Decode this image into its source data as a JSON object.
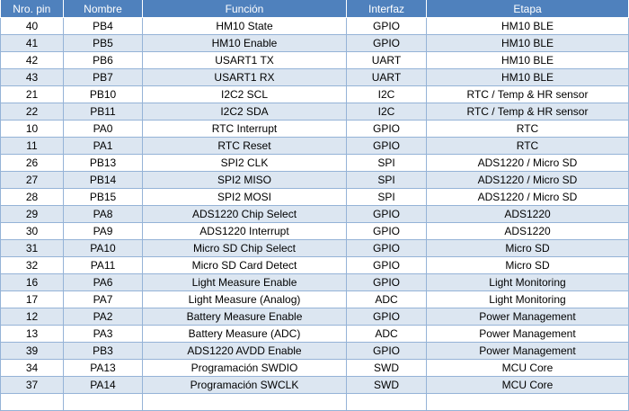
{
  "table": {
    "headers": [
      "Nro. pin",
      "Nombre",
      "Función",
      "Interfaz",
      "Etapa"
    ],
    "rows": [
      [
        "40",
        "PB4",
        "HM10 State",
        "GPIO",
        "HM10 BLE"
      ],
      [
        "41",
        "PB5",
        "HM10 Enable",
        "GPIO",
        "HM10 BLE"
      ],
      [
        "42",
        "PB6",
        "USART1 TX",
        "UART",
        "HM10 BLE"
      ],
      [
        "43",
        "PB7",
        "USART1 RX",
        "UART",
        "HM10 BLE"
      ],
      [
        "21",
        "PB10",
        "I2C2 SCL",
        "I2C",
        "RTC / Temp & HR sensor"
      ],
      [
        "22",
        "PB11",
        "I2C2 SDA",
        "I2C",
        "RTC / Temp & HR sensor"
      ],
      [
        "10",
        "PA0",
        "RTC Interrupt",
        "GPIO",
        "RTC"
      ],
      [
        "11",
        "PA1",
        "RTC Reset",
        "GPIO",
        "RTC"
      ],
      [
        "26",
        "PB13",
        "SPI2 CLK",
        "SPI",
        "ADS1220 / Micro SD"
      ],
      [
        "27",
        "PB14",
        "SPI2 MISO",
        "SPI",
        "ADS1220 / Micro SD"
      ],
      [
        "28",
        "PB15",
        "SPI2 MOSI",
        "SPI",
        "ADS1220 / Micro SD"
      ],
      [
        "29",
        "PA8",
        "ADS1220 Chip Select",
        "GPIO",
        "ADS1220"
      ],
      [
        "30",
        "PA9",
        "ADS1220 Interrupt",
        "GPIO",
        "ADS1220"
      ],
      [
        "31",
        "PA10",
        "Micro SD Chip Select",
        "GPIO",
        "Micro SD"
      ],
      [
        "32",
        "PA11",
        "Micro SD Card Detect",
        "GPIO",
        "Micro SD"
      ],
      [
        "16",
        "PA6",
        "Light Measure Enable",
        "GPIO",
        "Light Monitoring"
      ],
      [
        "17",
        "PA7",
        "Light Measure (Analog)",
        "ADC",
        "Light Monitoring"
      ],
      [
        "12",
        "PA2",
        "Battery Measure Enable",
        "GPIO",
        "Power Management"
      ],
      [
        "13",
        "PA3",
        "Battery Measure (ADC)",
        "ADC",
        "Power Management"
      ],
      [
        "39",
        "PB3",
        "ADS1220 AVDD Enable",
        "GPIO",
        "Power Management"
      ],
      [
        "34",
        "PA13",
        "Programación SWDIO",
        "SWD",
        "MCU Core"
      ],
      [
        "37",
        "PA14",
        "Programación SWCLK",
        "SWD",
        "MCU Core"
      ],
      [
        "",
        "",
        "",
        "",
        ""
      ]
    ]
  },
  "colors": {
    "header_bg": "#4f81bd",
    "header_text": "#ffffff",
    "row_alt_bg": "#dce6f1",
    "grid_line": "#95b3d7"
  }
}
